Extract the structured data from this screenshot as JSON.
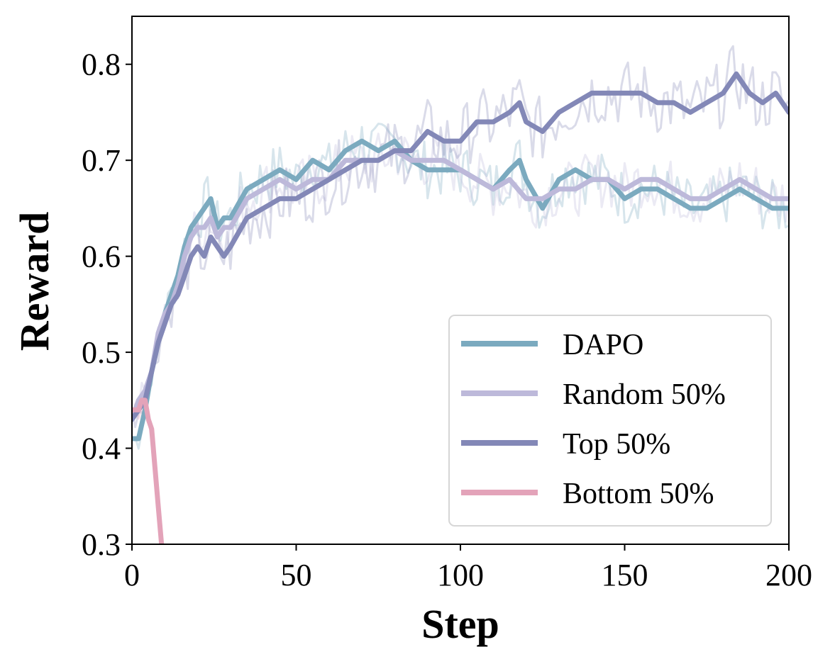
{
  "chart_data": {
    "type": "line",
    "title": "",
    "xlabel": "Step",
    "ylabel": "Reward",
    "xlim": [
      0,
      200
    ],
    "ylim": [
      0.3,
      0.85
    ],
    "xticks": [
      "0",
      "50",
      "100",
      "150",
      "200"
    ],
    "yticks": [
      "0.3",
      "0.4",
      "0.5",
      "0.6",
      "0.7",
      "0.8"
    ],
    "grid": false,
    "legend_position": "bottom-right",
    "series": [
      {
        "name": "DAPO",
        "color": "#7BAABF",
        "x": [
          0,
          2,
          4,
          6,
          8,
          10,
          12,
          14,
          16,
          18,
          20,
          22,
          24,
          26,
          28,
          30,
          35,
          40,
          45,
          50,
          55,
          60,
          65,
          70,
          75,
          80,
          85,
          90,
          95,
          100,
          105,
          110,
          115,
          118,
          120,
          125,
          130,
          135,
          140,
          145,
          150,
          155,
          160,
          165,
          170,
          175,
          180,
          185,
          190,
          195,
          200
        ],
        "values": [
          0.41,
          0.41,
          0.44,
          0.48,
          0.51,
          0.54,
          0.56,
          0.58,
          0.61,
          0.63,
          0.64,
          0.65,
          0.66,
          0.63,
          0.64,
          0.64,
          0.67,
          0.68,
          0.69,
          0.68,
          0.7,
          0.69,
          0.71,
          0.72,
          0.71,
          0.72,
          0.7,
          0.69,
          0.69,
          0.69,
          0.68,
          0.67,
          0.69,
          0.7,
          0.68,
          0.65,
          0.68,
          0.69,
          0.68,
          0.68,
          0.66,
          0.67,
          0.67,
          0.66,
          0.65,
          0.65,
          0.66,
          0.67,
          0.66,
          0.65,
          0.65
        ]
      },
      {
        "name": "Random 50%",
        "color": "#BDB9DA",
        "x": [
          0,
          2,
          4,
          6,
          8,
          10,
          12,
          14,
          16,
          18,
          20,
          22,
          24,
          26,
          28,
          30,
          35,
          40,
          45,
          50,
          55,
          60,
          65,
          70,
          75,
          80,
          85,
          90,
          95,
          100,
          105,
          110,
          115,
          120,
          125,
          130,
          135,
          140,
          145,
          150,
          155,
          160,
          165,
          170,
          175,
          180,
          185,
          190,
          195,
          200
        ],
        "values": [
          0.43,
          0.45,
          0.46,
          0.48,
          0.52,
          0.54,
          0.55,
          0.57,
          0.6,
          0.62,
          0.63,
          0.63,
          0.64,
          0.62,
          0.63,
          0.63,
          0.66,
          0.67,
          0.68,
          0.67,
          0.68,
          0.68,
          0.7,
          0.7,
          0.7,
          0.71,
          0.7,
          0.7,
          0.7,
          0.69,
          0.68,
          0.67,
          0.68,
          0.66,
          0.66,
          0.67,
          0.67,
          0.68,
          0.68,
          0.67,
          0.68,
          0.68,
          0.67,
          0.66,
          0.66,
          0.67,
          0.68,
          0.67,
          0.66,
          0.66
        ]
      },
      {
        "name": "Top 50%",
        "color": "#8388B7",
        "x": [
          0,
          2,
          4,
          6,
          8,
          10,
          12,
          14,
          16,
          18,
          20,
          22,
          24,
          26,
          28,
          30,
          35,
          40,
          45,
          50,
          55,
          60,
          65,
          70,
          75,
          80,
          85,
          90,
          95,
          100,
          105,
          110,
          115,
          118,
          120,
          125,
          130,
          135,
          140,
          145,
          150,
          155,
          160,
          165,
          170,
          175,
          180,
          184,
          188,
          192,
          196,
          200
        ],
        "values": [
          0.43,
          0.44,
          0.45,
          0.48,
          0.51,
          0.53,
          0.55,
          0.56,
          0.58,
          0.6,
          0.61,
          0.6,
          0.62,
          0.61,
          0.6,
          0.61,
          0.64,
          0.65,
          0.66,
          0.66,
          0.67,
          0.68,
          0.69,
          0.7,
          0.7,
          0.71,
          0.71,
          0.73,
          0.72,
          0.72,
          0.74,
          0.74,
          0.75,
          0.76,
          0.74,
          0.73,
          0.75,
          0.76,
          0.77,
          0.77,
          0.77,
          0.77,
          0.76,
          0.76,
          0.75,
          0.76,
          0.77,
          0.79,
          0.77,
          0.76,
          0.77,
          0.75
        ]
      },
      {
        "name": "Bottom 50%",
        "color": "#E3A3B9",
        "x": [
          0,
          1,
          2,
          3,
          4,
          5,
          6,
          7,
          8,
          9
        ],
        "values": [
          0.44,
          0.44,
          0.44,
          0.45,
          0.45,
          0.43,
          0.42,
          0.38,
          0.34,
          0.3
        ]
      }
    ]
  }
}
